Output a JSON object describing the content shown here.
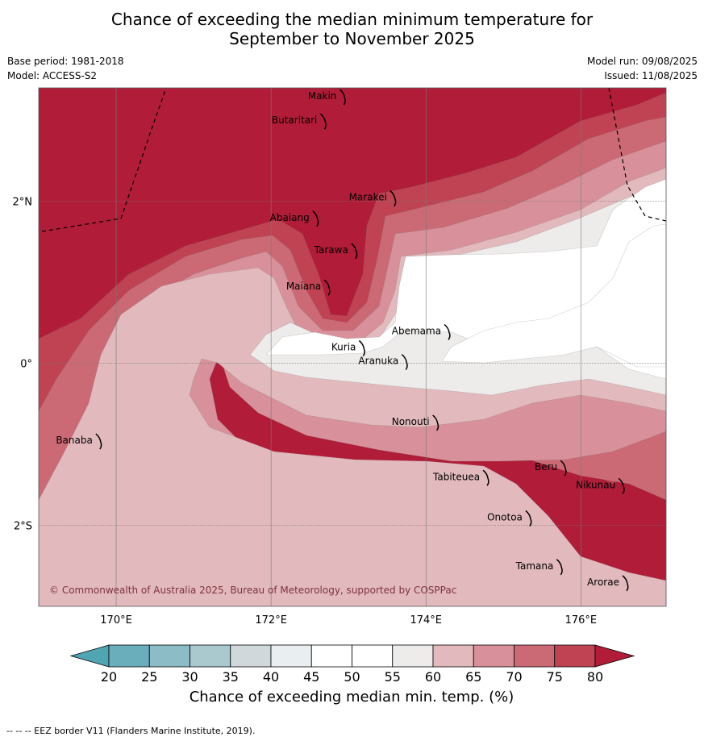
{
  "title": {
    "line1": "Chance of exceeding the median minimum temperature for",
    "line2": "September to November 2025"
  },
  "meta": {
    "base_period": "Base period: 1981-2018",
    "model": "Model: ACCESS-S2",
    "model_run": "Model run: 09/08/2025",
    "issued": "Issued: 11/08/2025"
  },
  "map": {
    "lon_range": [
      169.0,
      177.1
    ],
    "lat_range": [
      -3.0,
      3.4
    ],
    "lon_ticks": [
      {
        "value": 170,
        "label": "170°E"
      },
      {
        "value": 172,
        "label": "172°E"
      },
      {
        "value": 174,
        "label": "174°E"
      },
      {
        "value": 176,
        "label": "176°E"
      }
    ],
    "lat_ticks": [
      {
        "value": 2,
        "label": "2°N"
      },
      {
        "value": 0,
        "label": "0°"
      },
      {
        "value": -2,
        "label": "2°S"
      }
    ],
    "places": [
      {
        "name": "Makin",
        "lon": 172.95,
        "lat": 3.3
      },
      {
        "name": "Butaritari",
        "lon": 172.7,
        "lat": 3.0
      },
      {
        "name": "Marakei",
        "lon": 173.6,
        "lat": 2.05
      },
      {
        "name": "Abaiang",
        "lon": 172.6,
        "lat": 1.8
      },
      {
        "name": "Tarawa",
        "lon": 173.1,
        "lat": 1.4
      },
      {
        "name": "Maiana",
        "lon": 172.75,
        "lat": 0.95
      },
      {
        "name": "Abemama",
        "lon": 174.3,
        "lat": 0.4
      },
      {
        "name": "Kuria",
        "lon": 173.2,
        "lat": 0.2
      },
      {
        "name": "Aranuka",
        "lon": 173.75,
        "lat": 0.03
      },
      {
        "name": "Nonouti",
        "lon": 174.15,
        "lat": -0.72
      },
      {
        "name": "Banaba",
        "lon": 169.8,
        "lat": -0.95
      },
      {
        "name": "Tabiteuea",
        "lon": 174.8,
        "lat": -1.4
      },
      {
        "name": "Beru",
        "lon": 175.8,
        "lat": -1.28
      },
      {
        "name": "Nikunau",
        "lon": 176.55,
        "lat": -1.5
      },
      {
        "name": "Onotoa",
        "lon": 175.35,
        "lat": -1.9
      },
      {
        "name": "Tamana",
        "lon": 175.75,
        "lat": -2.5
      },
      {
        "name": "Arorae",
        "lon": 176.6,
        "lat": -2.7
      }
    ],
    "copyright": "© Commonwealth of Australia 2025, Bureau of Meteorology, supported by COSPPac"
  },
  "colorbar": {
    "label": "Chance of exceeding median min. temp. (%)",
    "ticks": [
      20,
      25,
      30,
      35,
      40,
      45,
      50,
      55,
      60,
      65,
      70,
      75,
      80
    ],
    "colors": {
      "below": "#4fa5b2",
      "bins": [
        "#6aaebb",
        "#8cbcc6",
        "#a9c9cf",
        "#d0d8db",
        "#e9eff1",
        "#ffffff",
        "#ffffff",
        "#eeeceb",
        "#e2b9bd",
        "#d8919a",
        "#cb6a75",
        "#bf4352"
      ],
      "above": "#b11c38"
    }
  },
  "footnote": "--  --  -- EEZ border V11 (Flanders Marine Institute, 2019)."
}
